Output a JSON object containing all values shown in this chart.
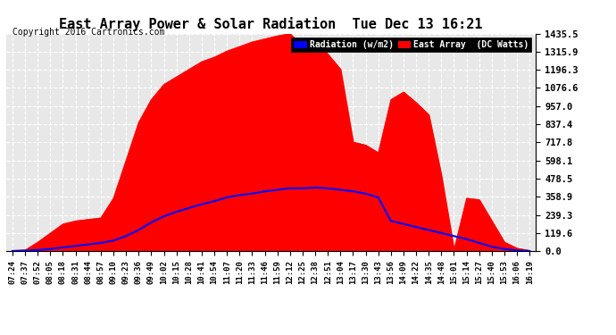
{
  "title": "East Array Power & Solar Radiation  Tue Dec 13 16:21",
  "copyright": "Copyright 2016 Cartronics.com",
  "background_color": "#ffffff",
  "plot_bg_color": "#e8e8e8",
  "grid_color": "#ffffff",
  "yticks": [
    0.0,
    119.6,
    239.3,
    358.9,
    478.5,
    598.1,
    717.8,
    837.4,
    957.0,
    1076.6,
    1196.3,
    1315.9,
    1435.5
  ],
  "ymax": 1435.5,
  "ymin": 0.0,
  "legend_radiation_label": "Radiation (w/m2)",
  "legend_east_label": "East Array  (DC Watts)",
  "radiation_color": "#0000ff",
  "east_color": "#ff0000",
  "east_fill_color": "#ff0000",
  "xtick_labels": [
    "07:24",
    "07:37",
    "07:52",
    "08:05",
    "08:18",
    "08:31",
    "08:44",
    "08:57",
    "09:10",
    "09:23",
    "09:36",
    "09:49",
    "10:02",
    "10:15",
    "10:28",
    "10:41",
    "10:54",
    "11:07",
    "11:20",
    "11:33",
    "11:46",
    "11:59",
    "12:12",
    "12:25",
    "12:38",
    "12:51",
    "13:04",
    "13:17",
    "13:30",
    "13:43",
    "13:56",
    "14:09",
    "14:22",
    "14:35",
    "14:48",
    "15:01",
    "15:14",
    "15:27",
    "15:40",
    "15:53",
    "16:06",
    "16:19"
  ],
  "east_data": [
    5,
    8,
    60,
    120,
    180,
    200,
    210,
    220,
    350,
    600,
    850,
    1000,
    1100,
    1150,
    1200,
    1250,
    1280,
    1320,
    1350,
    1380,
    1400,
    1420,
    1435,
    1350,
    1380,
    1300,
    1200,
    720,
    700,
    650,
    1000,
    1050,
    980,
    900,
    500,
    10,
    350,
    340,
    200,
    60,
    20,
    5
  ],
  "radiation_data": [
    2,
    4,
    8,
    15,
    25,
    35,
    45,
    55,
    70,
    100,
    140,
    190,
    230,
    260,
    285,
    310,
    330,
    355,
    370,
    380,
    395,
    405,
    415,
    415,
    420,
    415,
    405,
    395,
    380,
    355,
    200,
    180,
    160,
    140,
    120,
    100,
    80,
    55,
    30,
    15,
    5,
    2
  ]
}
